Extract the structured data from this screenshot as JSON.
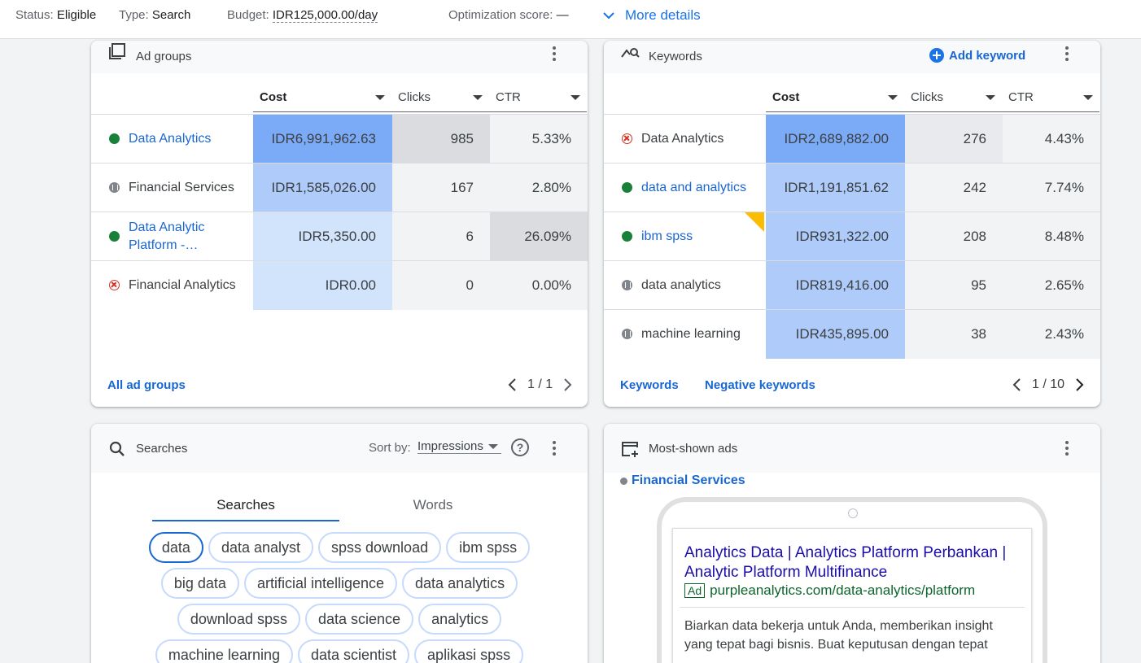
{
  "topbar": {
    "status_label": "Status:",
    "status_value": "Eligible",
    "type_label": "Type:",
    "type_value": "Search",
    "budget_label": "Budget:",
    "budget_value": "IDR125,000.00/day",
    "optimization_label": "Optimization score:",
    "optimization_value": "—",
    "more_details": "More details"
  },
  "ad_groups": {
    "title": "Ad groups",
    "columns": [
      "Cost",
      "Clicks",
      "CTR"
    ],
    "rows": [
      {
        "name": "Data Analytics",
        "status": "enabled",
        "cost": "IDR6,991,962.63",
        "clicks": "985",
        "ctr": "5.33%"
      },
      {
        "name": "Financial Services",
        "status": "paused",
        "cost": "IDR1,585,026.00",
        "clicks": "167",
        "ctr": "2.80%"
      },
      {
        "name": "Data Analytic Platform -…",
        "status": "enabled",
        "cost": "IDR5,350.00",
        "clicks": "6",
        "ctr": "26.09%"
      },
      {
        "name": "Financial Analytics",
        "status": "removed",
        "cost": "IDR0.00",
        "clicks": "0",
        "ctr": "0.00%"
      }
    ],
    "footer_link": "All ad groups",
    "pager": "1 / 1"
  },
  "keywords": {
    "title": "Keywords",
    "add_label": "Add keyword",
    "columns": [
      "Cost",
      "Clicks",
      "CTR"
    ],
    "rows": [
      {
        "name": "Data Analytics",
        "status": "removed",
        "cost": "IDR2,689,882.00",
        "clicks": "276",
        "ctr": "4.43%"
      },
      {
        "name": "data and analytics",
        "status": "enabled",
        "cost": "IDR1,191,851.62",
        "clicks": "242",
        "ctr": "7.74%"
      },
      {
        "name": "ibm spss",
        "status": "enabled",
        "cost": "IDR931,322.00",
        "clicks": "208",
        "ctr": "8.48%"
      },
      {
        "name": "data analytics",
        "status": "paused",
        "cost": "IDR819,416.00",
        "clicks": "95",
        "ctr": "2.65%"
      },
      {
        "name": "machine learning",
        "status": "paused",
        "cost": "IDR435,895.00",
        "clicks": "38",
        "ctr": "2.43%"
      }
    ],
    "footer_link_1": "Keywords",
    "footer_link_2": "Negative keywords",
    "pager": "1 / 10"
  },
  "searches": {
    "title": "Searches",
    "sort_label": "Sort by:",
    "sort_value": "Impressions",
    "tabs": [
      "Searches",
      "Words"
    ],
    "chips": [
      [
        "data",
        "data analyst",
        "spss download",
        "ibm spss"
      ],
      [
        "big data",
        "artificial intelligence",
        "data analytics"
      ],
      [
        "download spss",
        "data science",
        "analytics"
      ],
      [
        "machine learning",
        "data scientist",
        "aplikasi spss"
      ]
    ]
  },
  "most_shown_ads": {
    "title": "Most-shown ads",
    "ad_group": "Financial Services",
    "headline": "Analytics Data | Analytics Platform Perbankan | Analytic Platform Multifinance",
    "ad_badge": "Ad",
    "display_url": "purpleanalytics.com/data-analytics/platform",
    "description": "Biarkan data bekerja untuk Anda, memberikan insight yang tepat bagi bisnis. Buat keputusan dengan tepat"
  },
  "colors": {
    "accent": "#1967d2",
    "cost_dark": "#7baaf7",
    "cost_mid": "#aecbfa",
    "cost_light": "#d2e3fc",
    "gray_dark": "#dadce0",
    "gray_mid": "#e8eaed",
    "gray_light": "#f1f3f4"
  }
}
